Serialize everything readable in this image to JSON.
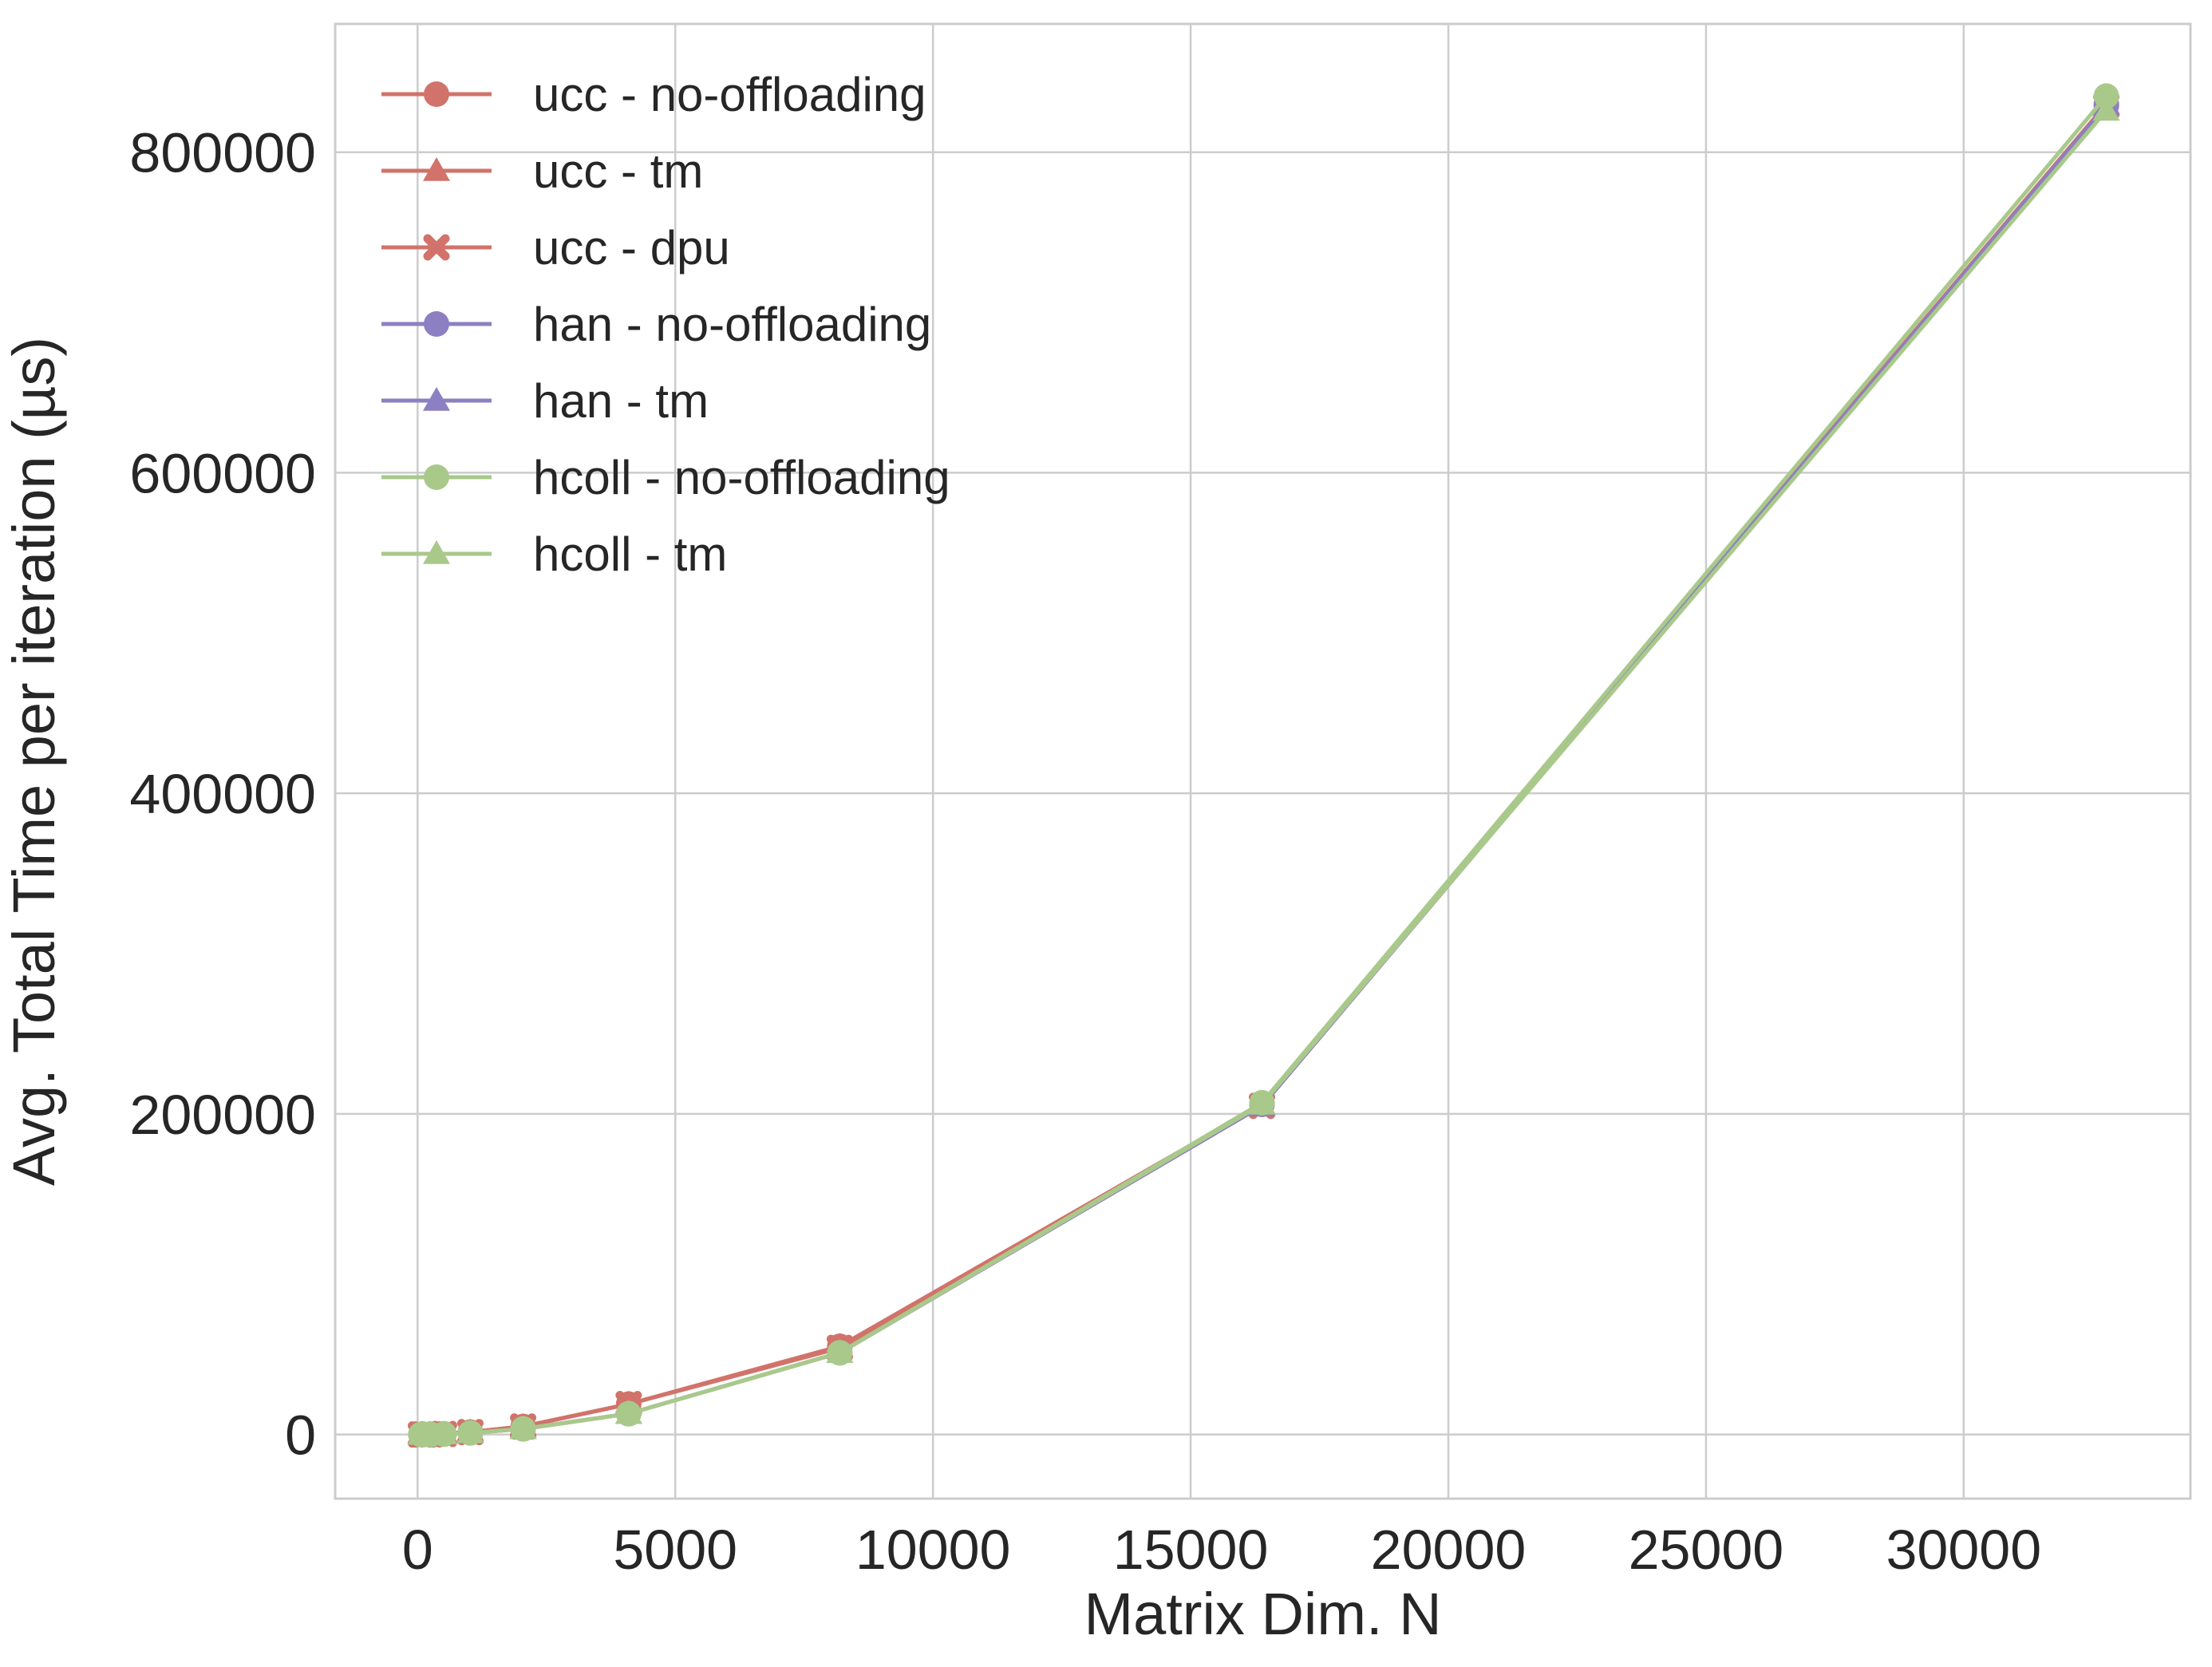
{
  "chart_data": {
    "type": "line",
    "title": "",
    "xlabel": "Matrix Dim. N",
    "ylabel": "Avg. Total Time per iteration (µs)",
    "xlim": [
      -1600,
      34400
    ],
    "ylim": [
      -40000,
      880000
    ],
    "xticks": [
      0,
      5000,
      10000,
      15000,
      20000,
      25000,
      30000
    ],
    "yticks": [
      0,
      200000,
      400000,
      600000,
      800000
    ],
    "grid": true,
    "legend_position": "upper-left",
    "x": [
      64,
      128,
      256,
      512,
      1024,
      2048,
      4096,
      8192,
      16384,
      32768
    ],
    "series": [
      {
        "name": "ucc - no-offloading",
        "color": "#d1736a",
        "marker": "circle",
        "values": [
          10,
          20,
          80,
          350,
          1500,
          5000,
          19000,
          55000,
          206000,
          830000
        ]
      },
      {
        "name": "ucc - tm",
        "color": "#d1736a",
        "marker": "triangle",
        "values": [
          10,
          20,
          80,
          350,
          1500,
          5000,
          19000,
          55000,
          206000,
          830000
        ]
      },
      {
        "name": "ucc - dpu",
        "color": "#d1736a",
        "marker": "x",
        "values": [
          10,
          20,
          80,
          350,
          1500,
          5000,
          19000,
          54000,
          205000,
          829000
        ]
      },
      {
        "name": "han - no-offloading",
        "color": "#8c7fc2",
        "marker": "circle",
        "values": [
          10,
          15,
          60,
          250,
          1000,
          3500,
          13000,
          51000,
          206000,
          829000
        ]
      },
      {
        "name": "han - tm",
        "color": "#8c7fc2",
        "marker": "triangle",
        "values": [
          10,
          15,
          60,
          250,
          1000,
          3500,
          13000,
          51000,
          205000,
          829000
        ]
      },
      {
        "name": "hcoll - no-offloading",
        "color": "#a9c98b",
        "marker": "circle",
        "values": [
          10,
          15,
          60,
          250,
          1000,
          3500,
          13000,
          51000,
          207000,
          835000
        ]
      },
      {
        "name": "hcoll - tm",
        "color": "#a9c98b",
        "marker": "triangle",
        "values": [
          10,
          15,
          60,
          250,
          1000,
          3500,
          13000,
          51000,
          206000,
          826000
        ]
      }
    ]
  }
}
